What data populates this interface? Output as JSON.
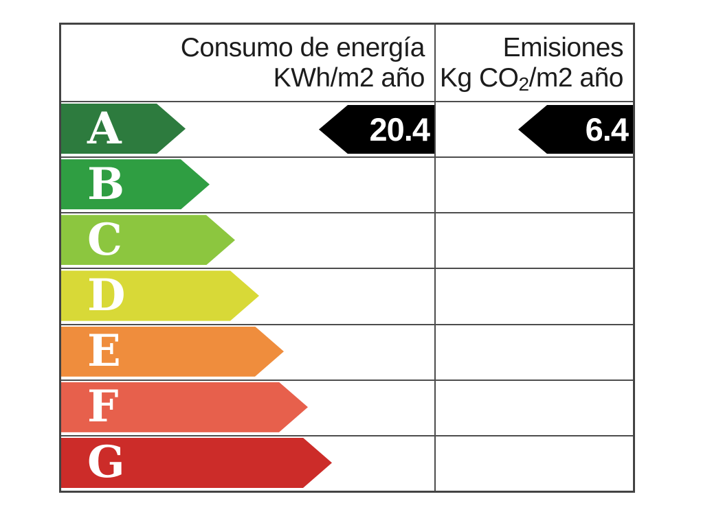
{
  "header": {
    "consumo": {
      "line1": "Consumo de energía",
      "line2": "KWh/m2 año"
    },
    "emisiones": {
      "line1": "Emisiones",
      "line2_pre": "Kg CO",
      "line2_sub": "2",
      "line2_post": "/m2 año"
    }
  },
  "scale": {
    "current_rating": "A",
    "ratings": [
      {
        "letter": "A",
        "color": "#2d7b3e",
        "arrow_width": 181
      },
      {
        "letter": "B",
        "color": "#2f9e42",
        "arrow_width": 216
      },
      {
        "letter": "C",
        "color": "#8cc63f",
        "arrow_width": 253
      },
      {
        "letter": "D",
        "color": "#d8d937",
        "arrow_width": 288
      },
      {
        "letter": "E",
        "color": "#ef8d3d",
        "arrow_width": 324
      },
      {
        "letter": "F",
        "color": "#e7604c",
        "arrow_width": 359
      },
      {
        "letter": "G",
        "color": "#cc2c29",
        "arrow_width": 394
      }
    ]
  },
  "indicators": {
    "consumo_value": "20.4",
    "emisiones_value": "6.4",
    "arrow_color": "#000000",
    "grid_line_color": "#4c4c4c"
  },
  "chart_data": {
    "type": "table",
    "title": "Etiqueta de eficiencia energética (energy efficiency rating label)",
    "columns": [
      "Consumo de energía KWh/m2 año",
      "Emisiones Kg CO2/m2 año"
    ],
    "scale_categories": [
      "A",
      "B",
      "C",
      "D",
      "E",
      "F",
      "G"
    ],
    "rating": "A",
    "values": [
      {
        "metric": "Consumo de energía",
        "unit": "KWh/m2 año",
        "value": 20.4,
        "rating": "A"
      },
      {
        "metric": "Emisiones",
        "unit": "Kg CO2/m2 año",
        "value": 6.4,
        "rating": "A"
      }
    ]
  }
}
